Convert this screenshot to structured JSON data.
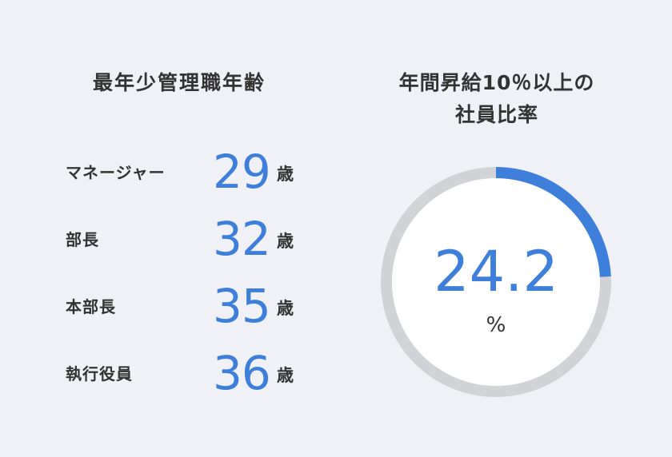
{
  "left": {
    "title": "最年少管理職年齢",
    "rows": [
      {
        "label": "マネージャー",
        "value": "29",
        "unit": "歳"
      },
      {
        "label": "部長",
        "value": "32",
        "unit": "歳"
      },
      {
        "label": "本部長",
        "value": "35",
        "unit": "歳"
      },
      {
        "label": "執行役員",
        "value": "36",
        "unit": "歳"
      }
    ]
  },
  "right": {
    "title_line1": "年間昇給10％以上の",
    "title_line2": "社員比率",
    "value": "24.2",
    "unit": "%",
    "fraction": 0.242,
    "ring_color": "#3f7fdc",
    "track_color": "#d2d3d6"
  },
  "colors": {
    "background": "#eff1f6",
    "accent": "#3f7fdc",
    "text": "#333333"
  }
}
